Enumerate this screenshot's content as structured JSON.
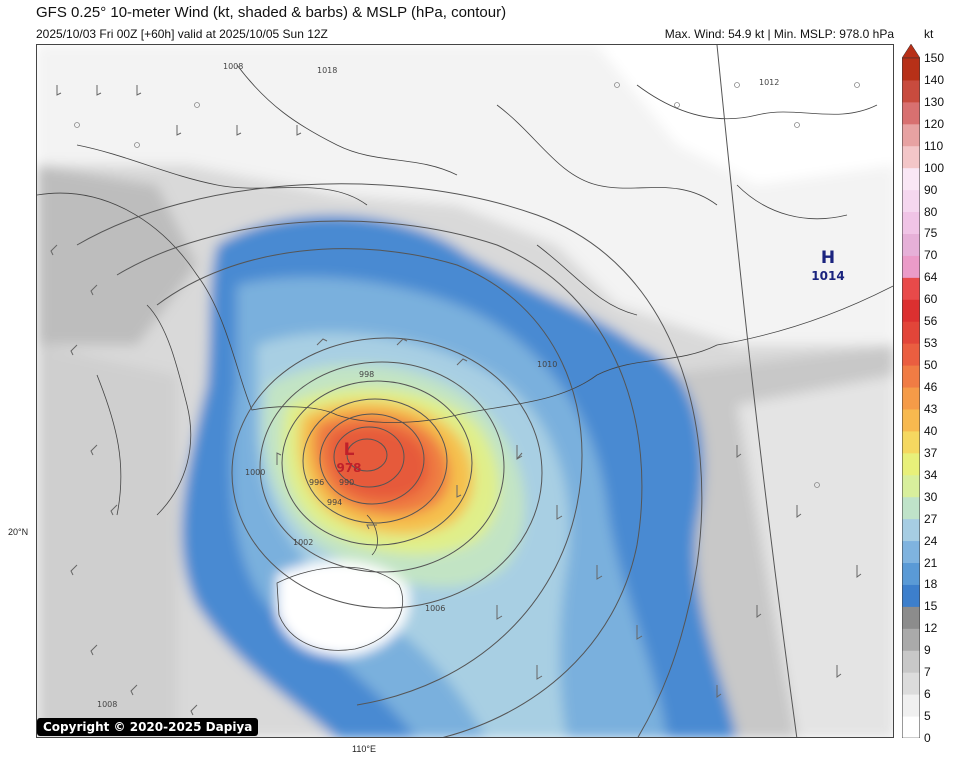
{
  "header": {
    "title": "GFS 0.25° 10-meter Wind (kt, shaded & barbs) & MSLP (hPa, contour)",
    "subtitle": "2025/10/03 Fri 00Z [+60h] valid at 2025/10/05 Sun 12Z",
    "stats": "Max. Wind: 54.9 kt | Min. MSLP: 978.0 hPa"
  },
  "colorbar": {
    "unit": "kt",
    "levels": [
      "0",
      "5",
      "6",
      "7",
      "9",
      "12",
      "15",
      "18",
      "21",
      "24",
      "27",
      "30",
      "34",
      "37",
      "40",
      "43",
      "46",
      "50",
      "53",
      "56",
      "60",
      "64",
      "70",
      "75",
      "80",
      "90",
      "100",
      "110",
      "120",
      "130",
      "140",
      "150"
    ],
    "colors": [
      "#ffffff",
      "#f0f0f0",
      "#dcdcdc",
      "#c8c8c8",
      "#aaaaaa",
      "#8c8c8c",
      "#3d7fcc",
      "#5a9ad6",
      "#7fb3df",
      "#a6cde3",
      "#bfe3c9",
      "#d8ef9c",
      "#e8f07a",
      "#f5d860",
      "#f7b94f",
      "#f59b48",
      "#f07c44",
      "#ea5e40",
      "#e24539",
      "#dc3030",
      "#e84a4a",
      "#eb9bc8",
      "#e6b0d8",
      "#f0c4e6",
      "#f5d7ef",
      "#f9e7f5",
      "#f3c6c8",
      "#e7a2a2",
      "#d87070",
      "#c84b3e",
      "#b73018"
    ]
  },
  "map": {
    "low": {
      "letter": "L",
      "value": "978",
      "color": "#c0202a"
    },
    "high": {
      "letter": "H",
      "value": "1014",
      "color": "#1a237e"
    },
    "isobar_labels": [
      "1008",
      "1008",
      "1010",
      "1006",
      "1002",
      "1000",
      "998",
      "996",
      "994",
      "990",
      "1012",
      "1018"
    ],
    "lat_label": "20°N",
    "lon_label": "110°E"
  },
  "footer": {
    "copyright": "Copyright © 2020-2025 Dapiya"
  }
}
